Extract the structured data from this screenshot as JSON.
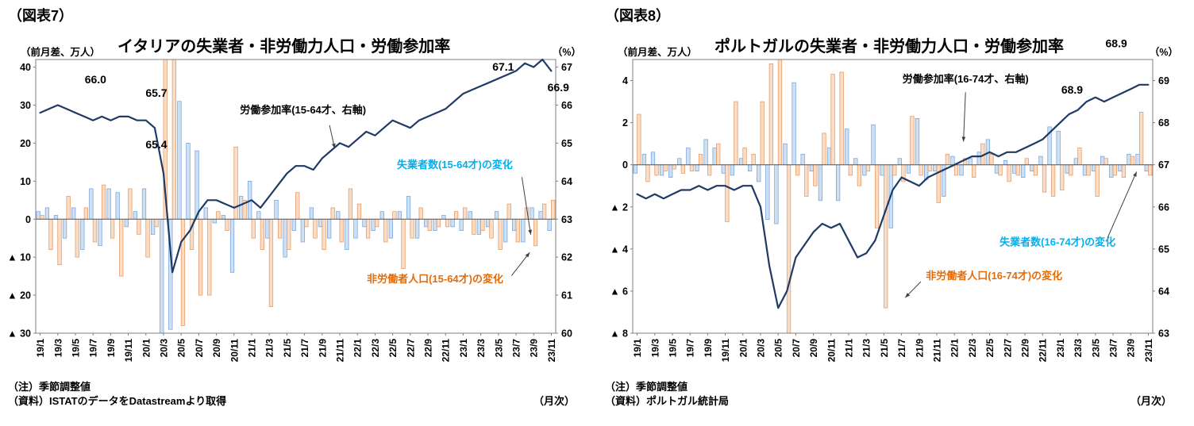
{
  "figures": [
    {
      "fig_label": "（図表7）",
      "title": "イタリアの失業者・非労働力人口・労働参加率",
      "left_axis_unit": "（前月差、万人）",
      "right_axis_unit": "（%）",
      "notes": [
        "（注）季節調整値",
        "（資料）ISTATのデータをDatastreamより取得"
      ],
      "freq_label": "（月次）"
    },
    {
      "fig_label": "（図表8）",
      "title": "ポルトガルの失業者・非労働力人口・労働参加率",
      "left_axis_unit": "（前月差、万人）",
      "right_axis_unit": "（%）",
      "notes": [
        "（注）季節調整値",
        "（資料）ポルトガル統計局"
      ],
      "freq_label": "（月次）"
    }
  ],
  "colors": {
    "bar_blue_fill": "#cfe0f2",
    "bar_blue_stroke": "#6f9fd8",
    "bar_orange_fill": "#fbdcc5",
    "bar_orange_stroke": "#e0955f",
    "line_navy": "#1f3a66",
    "label_cyan": "#00b0f0",
    "label_orange": "#e36c09"
  },
  "chart_data": [
    {
      "id": "italy",
      "type": "bar+line",
      "title": "イタリアの失業者・非労働力人口・労働参加率",
      "x": [
        "19/1",
        "19/2",
        "19/3",
        "19/4",
        "19/5",
        "19/6",
        "19/7",
        "19/8",
        "19/9",
        "19/10",
        "19/11",
        "19/12",
        "20/1",
        "20/2",
        "20/3",
        "20/4",
        "20/5",
        "20/6",
        "20/7",
        "20/8",
        "20/9",
        "20/10",
        "20/11",
        "20/12",
        "21/1",
        "21/2",
        "21/3",
        "21/4",
        "21/5",
        "21/6",
        "21/7",
        "21/8",
        "21/9",
        "21/10",
        "21/11",
        "21/12",
        "22/1",
        "22/2",
        "22/3",
        "22/4",
        "22/5",
        "22/6",
        "22/7",
        "22/8",
        "22/9",
        "22/10",
        "22/11",
        "22/12",
        "23/1",
        "23/2",
        "23/3",
        "23/4",
        "23/5",
        "23/6",
        "23/7",
        "23/8",
        "23/9",
        "23/10",
        "23/11"
      ],
      "left_axis": {
        "unit": "（前月差、万人）",
        "min": -30,
        "max": 42,
        "ticks": [
          40,
          30,
          20,
          10,
          0,
          -10,
          -20,
          -30
        ],
        "tick_labels": [
          "40",
          "30",
          "20",
          "10",
          "0",
          "▲ 10",
          "▲ 20",
          "▲ 30"
        ]
      },
      "right_axis": {
        "unit": "（%）",
        "min": 60,
        "max": 67.2,
        "ticks": [
          67,
          66,
          65,
          64,
          63,
          62,
          61,
          60
        ],
        "tick_labels": [
          "67",
          "66",
          "65",
          "64",
          "63",
          "62",
          "61",
          "60"
        ]
      },
      "series": [
        {
          "name": "失業者数（15-64才）の変化",
          "type": "bar",
          "fill": "#cfe0f2",
          "stroke": "#6f9fd8",
          "values": [
            2,
            3,
            1,
            -5,
            3,
            -8,
            8,
            -7,
            8,
            7,
            -2,
            2,
            8,
            -4,
            -32,
            -29,
            31,
            20,
            18,
            3,
            -1,
            1,
            -14,
            6,
            10,
            2,
            -5,
            5,
            -10,
            -3,
            -6,
            3,
            -2,
            -5,
            2,
            -8,
            -5,
            -2,
            -3,
            2,
            -5,
            2,
            6,
            -5,
            -2,
            -3,
            1,
            -2,
            -3,
            2,
            -4,
            -2,
            2,
            -6,
            -3,
            -6,
            3,
            2,
            -3
          ]
        },
        {
          "name": "非労働者人口（15-64才）の変化",
          "type": "bar",
          "fill": "#fbdcc5",
          "stroke": "#e0955f",
          "values": [
            1,
            -8,
            -12,
            6,
            -10,
            3,
            -6,
            9,
            -5,
            -15,
            8,
            -4,
            -10,
            -2,
            46,
            50,
            -28,
            -8,
            -20,
            -20,
            2,
            -3,
            19,
            5,
            -5,
            -8,
            -23,
            -5,
            -8,
            7,
            -2,
            -5,
            -8,
            3,
            -6,
            8,
            4,
            -5,
            -2,
            -6,
            2,
            -13,
            -5,
            3,
            -3,
            -2,
            -2,
            2,
            3,
            -4,
            -3,
            -5,
            -8,
            4,
            -6,
            3,
            -7,
            4,
            5
          ]
        },
        {
          "name": "労働参加率（15-64才、右軸）",
          "type": "line",
          "axis": "right",
          "color": "#1f3a66",
          "values": [
            65.8,
            65.9,
            66.0,
            65.9,
            65.8,
            65.7,
            65.6,
            65.7,
            65.6,
            65.7,
            65.7,
            65.6,
            65.6,
            65.4,
            64.2,
            61.6,
            62.4,
            62.7,
            63.2,
            63.5,
            63.5,
            63.4,
            63.3,
            63.4,
            63.5,
            63.3,
            63.6,
            63.9,
            64.2,
            64.4,
            64.4,
            64.3,
            64.6,
            64.8,
            65.0,
            64.9,
            65.1,
            65.3,
            65.2,
            65.4,
            65.6,
            65.5,
            65.4,
            65.6,
            65.7,
            65.8,
            65.9,
            66.1,
            66.3,
            66.4,
            66.5,
            66.6,
            66.7,
            66.8,
            66.9,
            67.1,
            67.0,
            67.2,
            66.9
          ]
        }
      ],
      "annotations": [
        {
          "text": "66.0",
          "fx": 0.115,
          "fy": 0.087,
          "color": "#000000",
          "size": 14,
          "weight": "bold"
        },
        {
          "text": "65.7",
          "fx": 0.232,
          "fy": 0.136,
          "color": "#000000",
          "size": 14,
          "weight": "bold"
        },
        {
          "text": "65.4",
          "fx": 0.232,
          "fy": 0.325,
          "color": "#000000",
          "size": 14,
          "weight": "bold"
        },
        {
          "text": "67.1",
          "fx": 0.899,
          "fy": 0.041,
          "color": "#000000",
          "size": 14,
          "weight": "bold"
        },
        {
          "text": "66.9",
          "fx": 1.005,
          "fy": 0.116,
          "color": "#000000",
          "size": 14,
          "weight": "bold"
        },
        {
          "text": "労働参加率(15-64才、右軸)",
          "fx": 0.514,
          "fy": 0.197,
          "color": "#000000",
          "size": 13,
          "weight": "bold",
          "arrow": [
            0.565,
            0.24,
            0.575,
            0.325
          ]
        },
        {
          "text": "失業者数(15-64才)の変化",
          "fx": 0.806,
          "fy": 0.397,
          "color": "#00b0f0",
          "size": 13,
          "weight": "bold",
          "arrow": [
            0.935,
            0.43,
            0.952,
            0.64
          ]
        },
        {
          "text": "非労働者人口(15-64才)の変化",
          "fx": 0.768,
          "fy": 0.815,
          "color": "#e36c09",
          "size": 13,
          "weight": "bold",
          "arrow": [
            0.915,
            0.79,
            0.95,
            0.705
          ]
        }
      ],
      "grid": "off",
      "legend": "inline-annotations"
    },
    {
      "id": "portugal",
      "type": "bar+line",
      "title": "ポルトガルの失業者・非労働力人口・労働参加率",
      "x": [
        "19/1",
        "19/2",
        "19/3",
        "19/4",
        "19/5",
        "19/6",
        "19/7",
        "19/8",
        "19/9",
        "19/10",
        "19/11",
        "19/12",
        "20/1",
        "20/2",
        "20/3",
        "20/4",
        "20/5",
        "20/6",
        "20/7",
        "20/8",
        "20/9",
        "20/10",
        "20/11",
        "20/12",
        "21/1",
        "21/2",
        "21/3",
        "21/4",
        "21/5",
        "21/6",
        "21/7",
        "21/8",
        "21/9",
        "21/10",
        "21/11",
        "21/12",
        "22/1",
        "22/2",
        "22/3",
        "22/4",
        "22/5",
        "22/6",
        "22/7",
        "22/8",
        "22/9",
        "22/10",
        "22/11",
        "22/12",
        "23/1",
        "23/2",
        "23/3",
        "23/4",
        "23/5",
        "23/6",
        "23/7",
        "23/8",
        "23/9",
        "23/10",
        "23/11"
      ],
      "left_axis": {
        "unit": "（前月差、万人）",
        "min": -8,
        "max": 5,
        "ticks": [
          4,
          2,
          0,
          -2,
          -4,
          -6,
          -8
        ],
        "tick_labels": [
          "4",
          "2",
          "0",
          "▲ 2",
          "▲ 4",
          "▲ 6",
          "▲ 8"
        ]
      },
      "right_axis": {
        "unit": "（%）",
        "min": 63,
        "max": 69.5,
        "ticks": [
          69,
          68,
          67,
          66,
          65,
          64,
          63
        ],
        "tick_labels": [
          "69",
          "68",
          "67",
          "66",
          "65",
          "64",
          "63"
        ]
      },
      "series": [
        {
          "name": "失業者数（16-74才）の変化",
          "type": "bar",
          "fill": "#cfe0f2",
          "stroke": "#6f9fd8",
          "values": [
            -0.4,
            0.5,
            0.6,
            -0.5,
            -0.6,
            0.3,
            0.8,
            -0.3,
            1.2,
            0.8,
            -0.4,
            -0.5,
            0.3,
            -0.3,
            -0.8,
            -2.6,
            -2.8,
            1.0,
            3.9,
            0.5,
            -0.3,
            -1.7,
            0.8,
            -1.7,
            1.7,
            0.3,
            -0.5,
            1.9,
            -0.5,
            -3.0,
            0.3,
            -0.4,
            2.2,
            -0.7,
            -0.3,
            -1.5,
            0.4,
            -0.5,
            0.3,
            0.6,
            1.2,
            -0.4,
            0.2,
            -0.4,
            -0.6,
            -0.3,
            0.4,
            1.8,
            1.6,
            -0.4,
            0.3,
            -0.5,
            -0.3,
            0.4,
            -0.6,
            -0.3,
            0.5,
            0.5,
            -0.3
          ]
        },
        {
          "name": "非労働者人口（16-74才）の変化",
          "type": "bar",
          "fill": "#fbdcc5",
          "stroke": "#e0955f",
          "values": [
            2.4,
            -0.8,
            -0.5,
            -0.3,
            -0.2,
            -0.4,
            -0.3,
            0.5,
            -0.5,
            1.0,
            -2.7,
            3.0,
            0.8,
            0.5,
            3.0,
            4.8,
            5.2,
            -8.3,
            -0.5,
            -1.5,
            -1.0,
            1.5,
            4.3,
            4.4,
            -0.5,
            -1.0,
            -0.3,
            -3.0,
            -6.8,
            -0.5,
            -0.8,
            2.3,
            -0.5,
            -0.3,
            -1.8,
            0.5,
            -0.5,
            0.3,
            -0.6,
            1.0,
            0.5,
            -0.5,
            -0.8,
            -0.5,
            0.3,
            -0.5,
            -1.3,
            -1.5,
            -1.2,
            -0.5,
            0.8,
            -0.5,
            -1.5,
            0.3,
            -0.5,
            -0.6,
            0.4,
            2.5,
            -0.5
          ]
        },
        {
          "name": "労働参加率（16-74才、右軸）",
          "type": "line",
          "axis": "right",
          "color": "#1f3a66",
          "values": [
            66.3,
            66.2,
            66.3,
            66.2,
            66.3,
            66.4,
            66.4,
            66.5,
            66.4,
            66.5,
            66.5,
            66.4,
            66.5,
            66.5,
            66.0,
            64.6,
            63.6,
            64.0,
            64.8,
            65.1,
            65.4,
            65.6,
            65.5,
            65.6,
            65.2,
            64.8,
            64.9,
            65.2,
            65.8,
            66.4,
            66.7,
            66.6,
            66.5,
            66.7,
            66.8,
            66.9,
            67.0,
            67.1,
            67.2,
            67.2,
            67.3,
            67.2,
            67.3,
            67.3,
            67.4,
            67.5,
            67.6,
            67.8,
            68.0,
            68.2,
            68.3,
            68.5,
            68.6,
            68.5,
            68.6,
            68.7,
            68.8,
            68.9,
            68.9
          ]
        }
      ],
      "annotations": [
        {
          "text": "68.9",
          "fx": 0.93,
          "fy": -0.045,
          "color": "#000000",
          "size": 14,
          "weight": "bold"
        },
        {
          "text": "68.9",
          "fx": 0.845,
          "fy": 0.125,
          "color": "#000000",
          "size": 14,
          "weight": "bold"
        },
        {
          "text": "労働参加率(16-74才、右軸)",
          "fx": 0.64,
          "fy": 0.084,
          "color": "#000000",
          "size": 13,
          "weight": "bold",
          "arrow": [
            0.64,
            0.12,
            0.636,
            0.3
          ]
        },
        {
          "text": "失業者数(16-74才)の変化",
          "fx": 0.817,
          "fy": 0.68,
          "color": "#00b0f0",
          "size": 13,
          "weight": "bold",
          "arrow": [
            0.913,
            0.652,
            0.969,
            0.41
          ]
        },
        {
          "text": "非労働者人口(16-74才)の変化",
          "fx": 0.695,
          "fy": 0.803,
          "color": "#e36c09",
          "size": 13,
          "weight": "bold",
          "arrow": [
            0.554,
            0.812,
            0.524,
            0.87
          ]
        }
      ],
      "grid": "off",
      "legend": "inline-annotations"
    }
  ]
}
